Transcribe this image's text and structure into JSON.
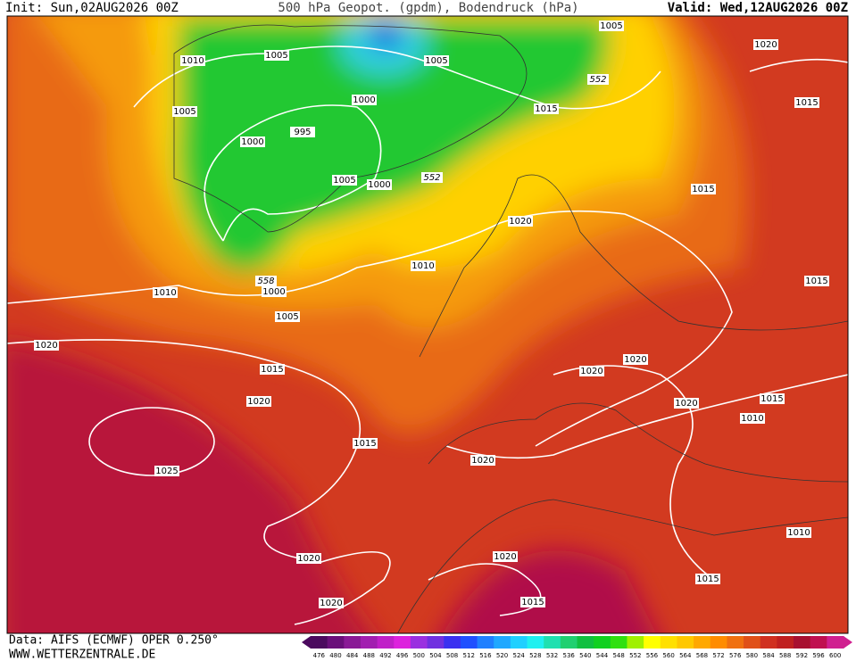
{
  "header": {
    "init": "Init: Sun,02AUG2026 00Z",
    "title": "500 hPa Geopot. (gpdm), Bodendruck (hPa)",
    "valid": "Valid: Wed,12AUG2026 00Z"
  },
  "isobar_labels": [
    "1005",
    "1010",
    "1005",
    "1000",
    "995",
    "1000",
    "1005",
    "1005",
    "1000",
    "1005",
    "1020",
    "1015",
    "1015",
    "1015",
    "1020",
    "1010",
    "1010",
    "1000",
    "1005",
    "1020",
    "1015",
    "1020",
    "1020",
    "1020",
    "1020",
    "1015",
    "1010",
    "1015",
    "1015",
    "1020",
    "1025",
    "1010",
    "1020",
    "1020",
    "1015",
    "1020",
    "1015"
  ],
  "geopot_labels": [
    "552",
    "552",
    "558"
  ],
  "colorbar": {
    "labels": [
      476,
      480,
      484,
      488,
      492,
      496,
      500,
      504,
      508,
      512,
      516,
      520,
      524,
      528,
      532,
      536,
      540,
      544,
      548,
      552,
      556,
      560,
      564,
      568,
      572,
      576,
      580,
      584,
      588,
      592,
      596,
      600
    ],
    "colors": [
      "#4b0a5e",
      "#6a0f7a",
      "#8a1a96",
      "#a21fb0",
      "#c020c8",
      "#dd22dd",
      "#9a30e0",
      "#7030e0",
      "#3a30f0",
      "#2050ff",
      "#2080ff",
      "#20a8ff",
      "#20d0ff",
      "#20f0f0",
      "#20e0b0",
      "#20d070",
      "#10c040",
      "#10d020",
      "#30e010",
      "#a0f000",
      "#ffff00",
      "#ffe000",
      "#ffc800",
      "#ffa800",
      "#ff8c00",
      "#f07010",
      "#e05018",
      "#d03020",
      "#c02020",
      "#a81030",
      "#c01050",
      "#d02090"
    ]
  },
  "footer": {
    "source": "Data: AIFS (ECMWF) OPER 0.250°",
    "site": "WWW.WETTERZENTRALE.DE"
  }
}
